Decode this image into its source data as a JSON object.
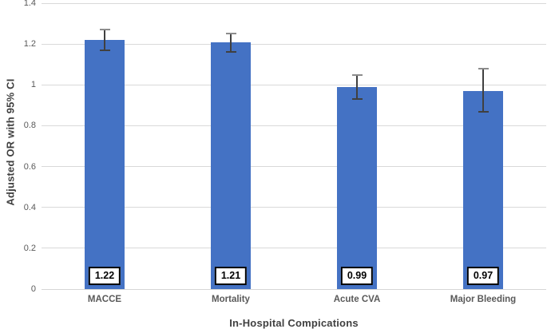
{
  "chart_data": {
    "type": "bar",
    "xlabel": "In-Hospital Compications",
    "ylabel": "Adjusted OR with 95% CI",
    "categories": [
      "MACCE",
      "Mortality",
      "Acute CVA",
      "Major Bleeding"
    ],
    "values": [
      1.22,
      1.21,
      0.99,
      0.97
    ],
    "data_labels": [
      "1.22",
      "1.21",
      "0.99",
      "0.97"
    ],
    "error_bars": {
      "upper": [
        1.27,
        1.25,
        1.05,
        1.08
      ],
      "lower": [
        1.17,
        1.16,
        0.93,
        0.87
      ]
    },
    "ylim": [
      0,
      1.4
    ],
    "yticks": [
      {
        "label": "0",
        "value": 0
      },
      {
        "label": "0.2",
        "value": 0.2
      },
      {
        "label": "0.4",
        "value": 0.4
      },
      {
        "label": "0.6",
        "value": 0.6
      },
      {
        "label": "0.8",
        "value": 0.8
      },
      {
        "label": "1",
        "value": 1
      },
      {
        "label": "1.2",
        "value": 1.2
      },
      {
        "label": "1.4",
        "value": 1.4
      }
    ],
    "grid": true,
    "legend": false,
    "colors": {
      "background": "#FFFFFF",
      "bar": "#4472C4",
      "gridline": "#D9D9D9",
      "axis_line": "#D6D6D6",
      "error_bar": "#404040",
      "error_bar_top_cap": "#8C8C8C",
      "tick_label": "#595959",
      "category_label": "#595959",
      "axis_title": "#404040",
      "data_label_text": "#000000",
      "data_label_bg": "#FFFFFF",
      "data_label_border": "#000000"
    }
  }
}
